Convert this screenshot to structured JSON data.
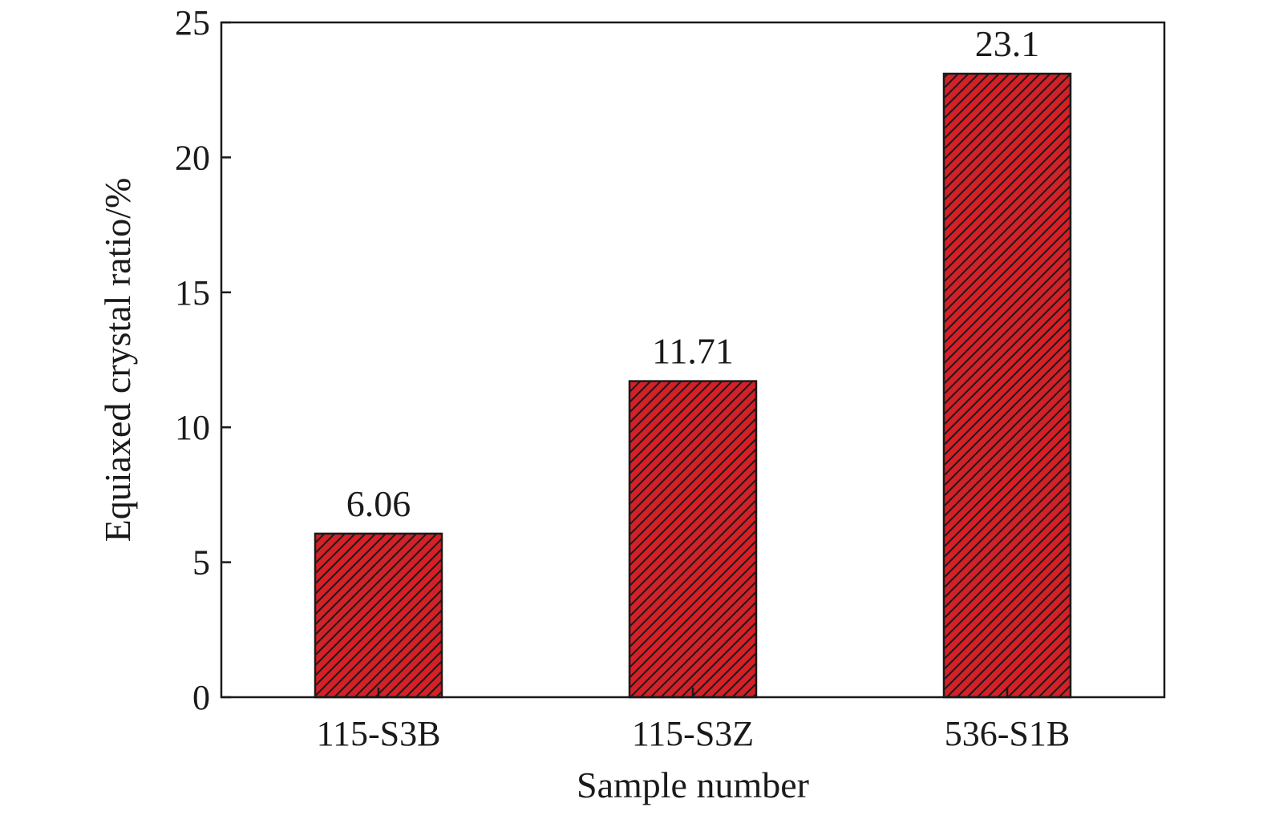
{
  "chart_data": {
    "type": "bar",
    "title": "",
    "xlabel": "Sample number",
    "ylabel": "Equiaxed crystal ratio/%",
    "categories": [
      "115-S3B",
      "115-S3Z",
      "536-S1B"
    ],
    "values": [
      6.06,
      11.71,
      23.1
    ],
    "data_labels": [
      "6.06",
      "11.71",
      "23.1"
    ],
    "ylim": [
      0,
      25
    ],
    "yticks": [
      0,
      5,
      10,
      15,
      20,
      25
    ],
    "grid": false,
    "legend": "none",
    "colors": {
      "bar_fill": "#d42027",
      "hatch": "#1a1a1a",
      "axis": "#1a1a1a"
    }
  }
}
